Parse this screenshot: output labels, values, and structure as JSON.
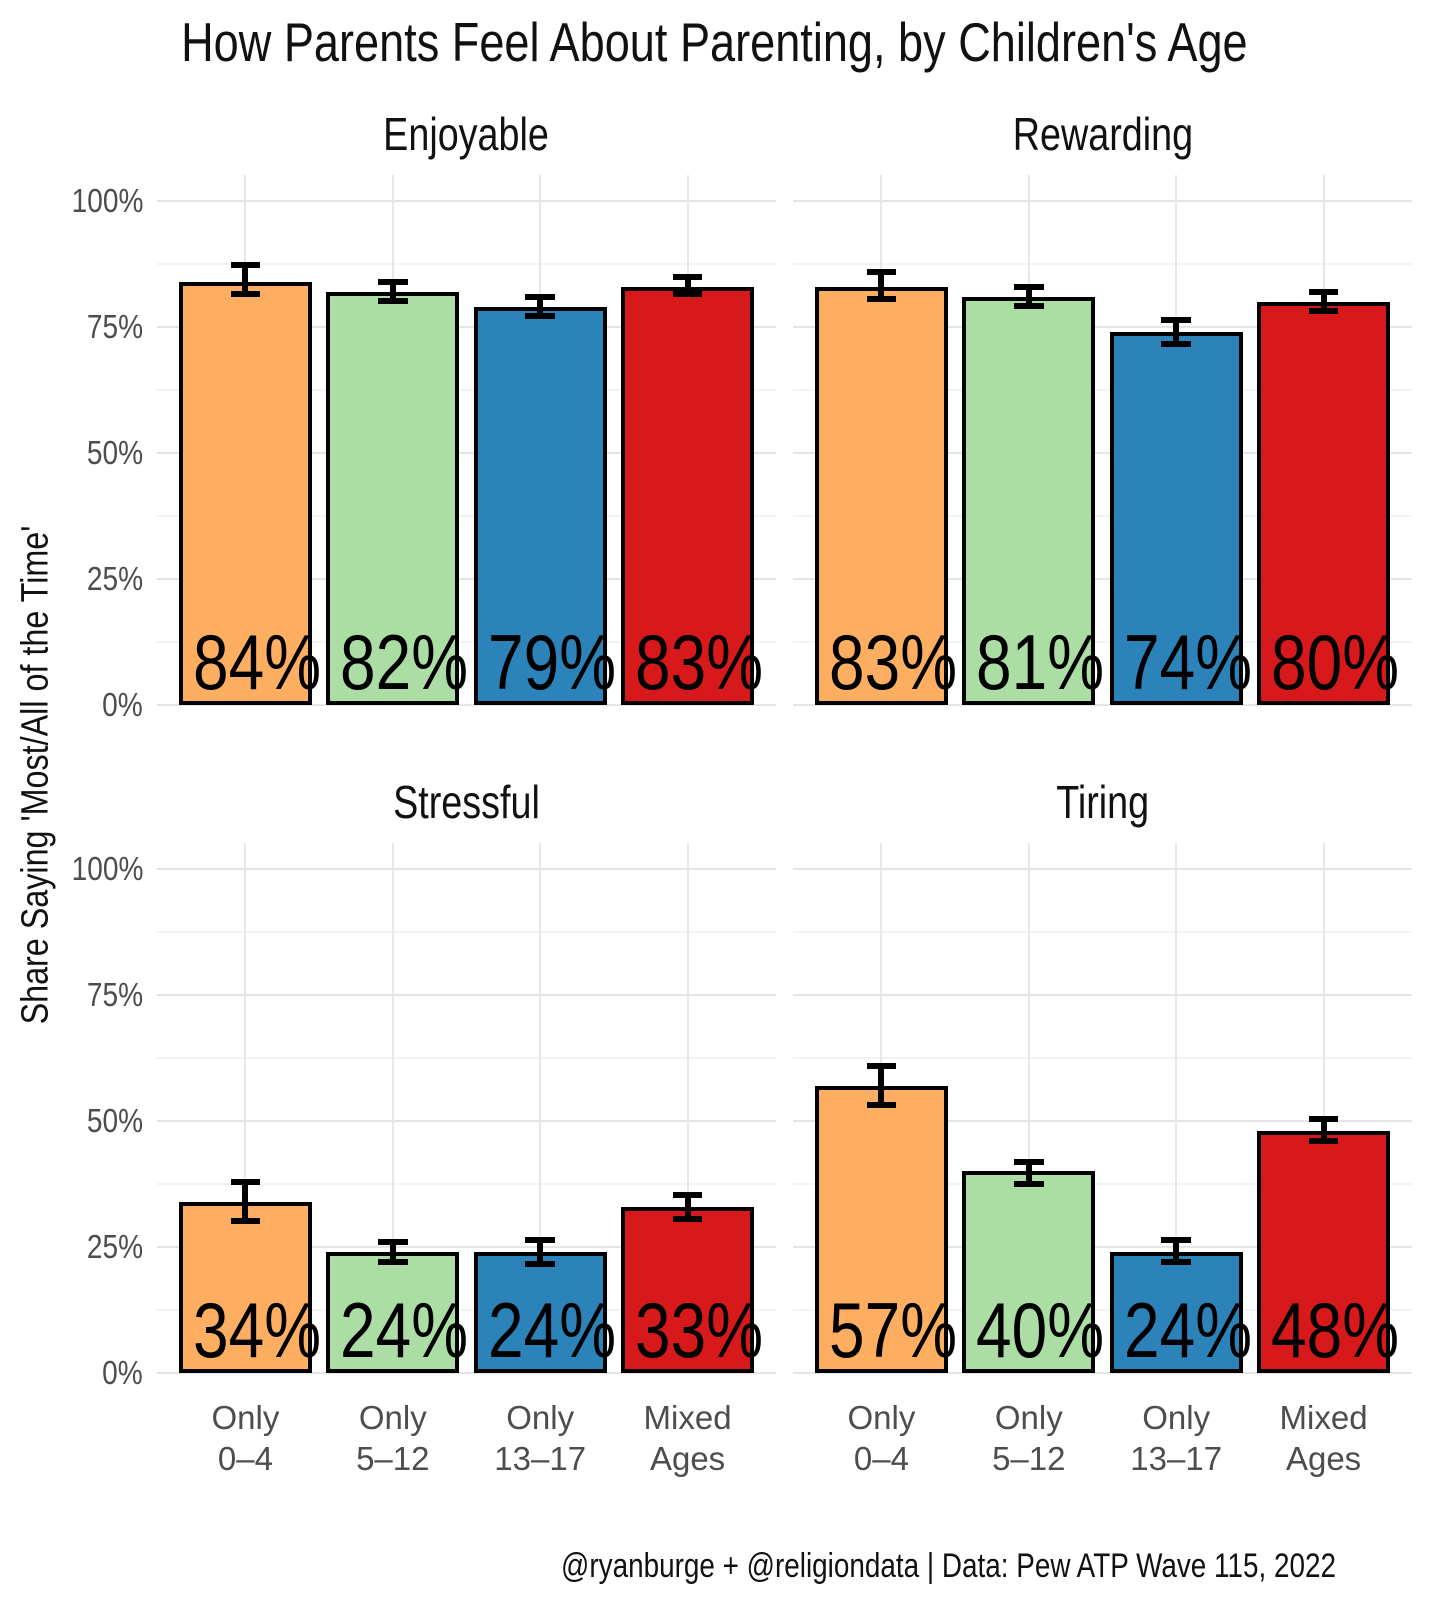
{
  "chart_data": {
    "type": "bar",
    "title": "How Parents Feel About Parenting, by Children's Age",
    "ylabel": "Share Saying 'Most/All of the Time'",
    "caption": "@ryanburge + @religiondata | Data: Pew ATP Wave 115, 2022",
    "categories": [
      "Only\n0–4",
      "Only\n5–12",
      "Only\n13–17",
      "Mixed\nAges"
    ],
    "category_colors": [
      "#FDAE61",
      "#ABDDA4",
      "#2B83BA",
      "#D7191C"
    ],
    "bar_outline_color": "#000000",
    "error_bar_color": "#000000",
    "y_ticks": [
      "0%",
      "25%",
      "50%",
      "75%",
      "100%"
    ],
    "y_tick_values": [
      0,
      25,
      50,
      75,
      100
    ],
    "y_minor_tick_values": [
      12.5,
      37.5,
      62.5,
      87.5
    ],
    "ylim": [
      0,
      105
    ],
    "grid": true,
    "legend": "none",
    "facet_layout": "2x2",
    "facets": [
      {
        "label": "Enjoyable",
        "values": [
          84,
          82,
          79,
          83
        ],
        "value_labels": [
          "84%",
          "82%",
          "79%",
          "83%"
        ],
        "error_low": [
          81,
          79.5,
          76.5,
          81
        ],
        "error_high": [
          88,
          84.5,
          81.5,
          85.5
        ]
      },
      {
        "label": "Rewarding",
        "values": [
          83,
          81,
          74,
          80
        ],
        "value_labels": [
          "83%",
          "81%",
          "74%",
          "80%"
        ],
        "error_low": [
          80,
          78.5,
          71,
          77.5
        ],
        "error_high": [
          86.5,
          83.5,
          77,
          82.5
        ]
      },
      {
        "label": "Stressful",
        "values": [
          34,
          24,
          24,
          33
        ],
        "value_labels": [
          "34%",
          "24%",
          "24%",
          "33%"
        ],
        "error_low": [
          29.5,
          21.5,
          21,
          30
        ],
        "error_high": [
          38.5,
          26.5,
          27,
          36
        ]
      },
      {
        "label": "Tiring",
        "values": [
          57,
          40,
          24,
          48
        ],
        "value_labels": [
          "57%",
          "40%",
          "24%",
          "48%"
        ],
        "error_low": [
          52.5,
          37,
          21.5,
          45.5
        ],
        "error_high": [
          61.5,
          42.5,
          27,
          51
        ]
      }
    ]
  }
}
